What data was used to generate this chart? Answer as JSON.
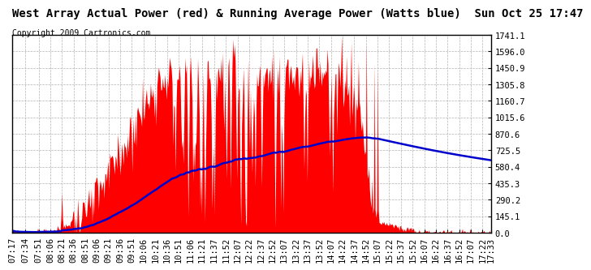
{
  "title": "West Array Actual Power (red) & Running Average Power (Watts blue)  Sun Oct 25 17:47",
  "copyright": "Copyright 2009 Cartronics.com",
  "yticks": [
    0.0,
    145.1,
    290.2,
    435.3,
    580.4,
    725.5,
    870.6,
    1015.6,
    1160.7,
    1305.8,
    1450.9,
    1596.0,
    1741.1
  ],
  "ymax": 1741.1,
  "ymin": 0.0,
  "bar_color": "#ff0000",
  "avg_color": "#0000cc",
  "background_color": "#ffffff",
  "grid_color": "#aaaaaa",
  "title_fontsize": 10,
  "copyright_fontsize": 7,
  "tick_fontsize": 7.5,
  "x_labels": [
    "07:17",
    "07:34",
    "07:51",
    "08:06",
    "08:21",
    "08:36",
    "08:51",
    "09:06",
    "09:21",
    "09:36",
    "09:51",
    "10:06",
    "10:21",
    "10:36",
    "10:51",
    "11:06",
    "11:21",
    "11:37",
    "11:52",
    "12:07",
    "12:22",
    "12:37",
    "12:52",
    "13:07",
    "13:22",
    "13:37",
    "13:52",
    "14:07",
    "14:22",
    "14:37",
    "14:52",
    "15:07",
    "15:22",
    "15:37",
    "15:52",
    "16:07",
    "16:22",
    "16:37",
    "16:52",
    "17:07",
    "17:22",
    "17:33"
  ]
}
